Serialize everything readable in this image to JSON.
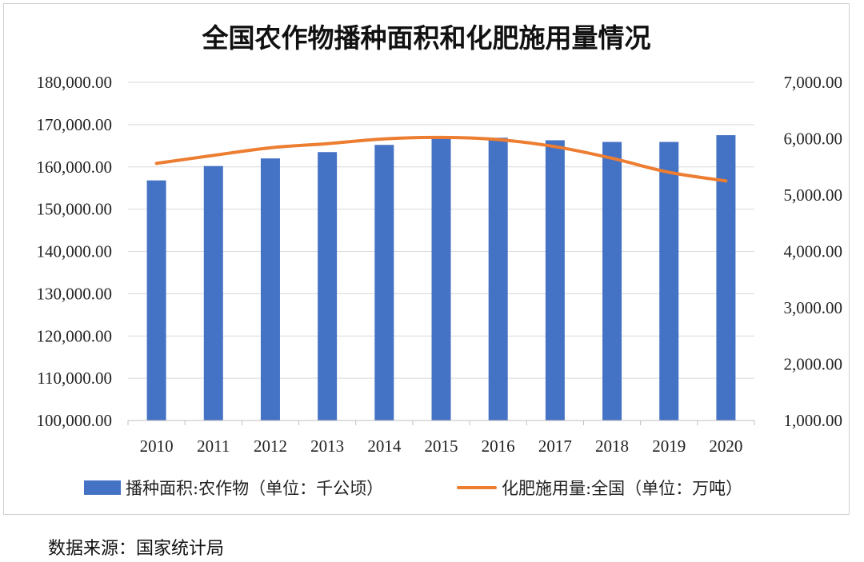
{
  "chart_data": {
    "type": "bar+line",
    "title": "全国农作物播种面积和化肥施用量情况",
    "categories": [
      "2010",
      "2011",
      "2012",
      "2013",
      "2014",
      "2015",
      "2016",
      "2017",
      "2018",
      "2019",
      "2020"
    ],
    "series": [
      {
        "name": "播种面积:农作物（单位：千公顷）",
        "type": "bar",
        "axis": "left",
        "color": "#4472C4",
        "values": [
          156800,
          160200,
          162000,
          163500,
          165200,
          166900,
          166900,
          166300,
          165900,
          165900,
          167500
        ]
      },
      {
        "name": "化肥施用量:全国（单位：万吨）",
        "type": "line",
        "axis": "right",
        "color": "#ED7D31",
        "values": [
          5562,
          5704,
          5839,
          5912,
          5996,
          6023,
          5984,
          5859,
          5653,
          5404,
          5251
        ]
      }
    ],
    "y_left": {
      "ylim": [
        100000,
        180000
      ],
      "ticks": [
        100000,
        110000,
        120000,
        130000,
        140000,
        150000,
        160000,
        170000,
        180000
      ],
      "tick_labels": [
        "100,000.00",
        "110,000.00",
        "120,000.00",
        "130,000.00",
        "140,000.00",
        "150,000.00",
        "160,000.00",
        "170,000.00",
        "180,000.00"
      ]
    },
    "y_right": {
      "ylim": [
        1000,
        7000
      ],
      "ticks": [
        1000,
        2000,
        3000,
        4000,
        5000,
        6000,
        7000
      ],
      "tick_labels": [
        "1,000.00",
        "2,000.00",
        "3,000.00",
        "4,000.00",
        "5,000.00",
        "6,000.00",
        "7,000.00"
      ]
    },
    "grid": true,
    "legend_position": "bottom"
  },
  "source_note": "数据来源：国家统计局"
}
